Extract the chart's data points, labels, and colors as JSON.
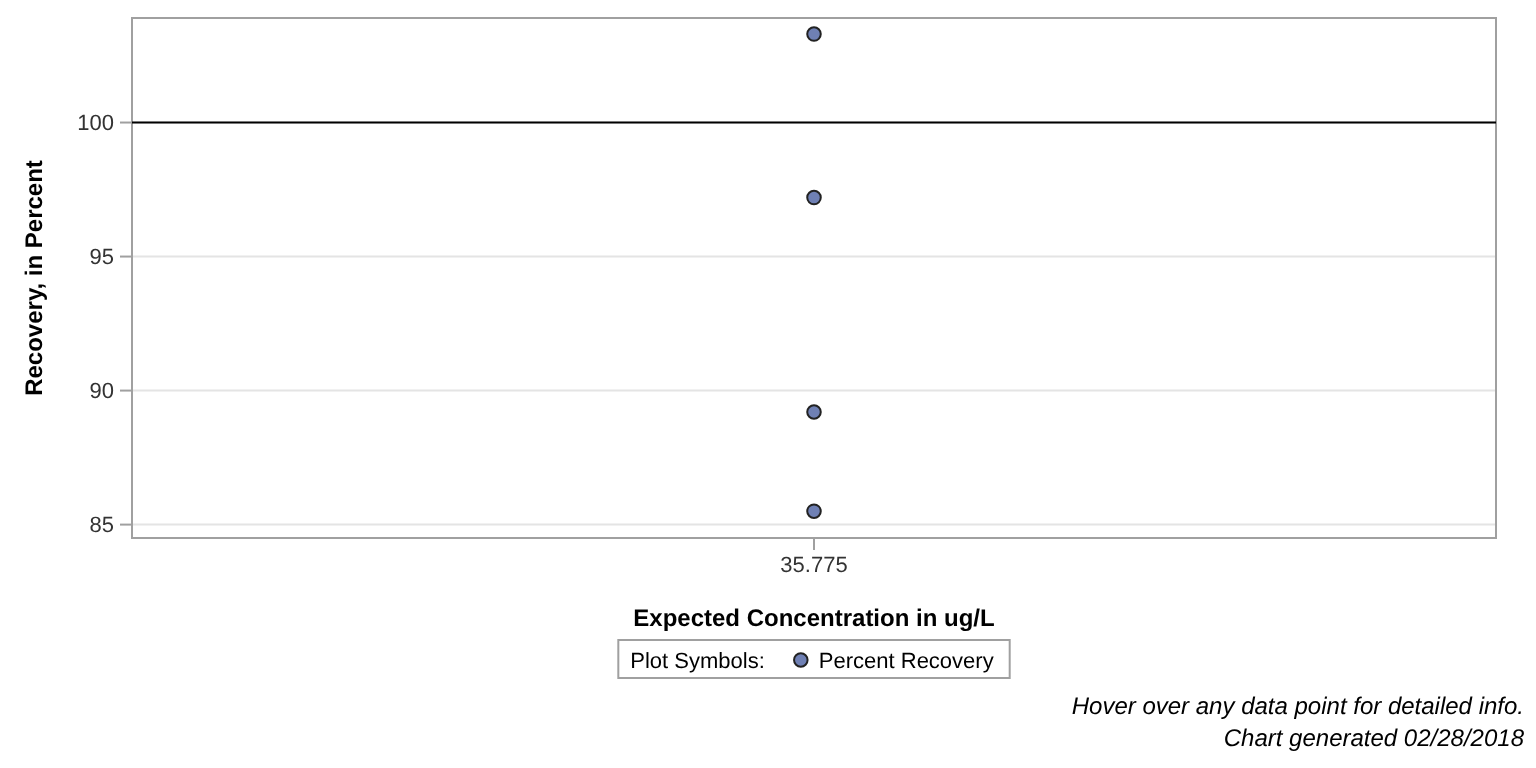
{
  "chart_data": {
    "type": "scatter",
    "xlabel": "Expected Concentration in ug/L",
    "ylabel": "Recovery, in Percent",
    "legend_title": "Plot Symbols:",
    "categories": [
      "35.775"
    ],
    "series": [
      {
        "name": "Percent Recovery",
        "color": "#6f80b4",
        "values": [
          103.3
        ]
      },
      {
        "name": null,
        "color": "#6f80b4",
        "values": [
          97.2
        ]
      },
      {
        "name": null,
        "color": "#6f80b4",
        "values": [
          89.2
        ]
      },
      {
        "name": null,
        "color": "#6f80b4",
        "values": [
          85.5
        ]
      }
    ],
    "ylim": [
      84.5,
      103.9
    ],
    "yticks": [
      85,
      90,
      95,
      100
    ],
    "grid": "y",
    "legend": "bottom",
    "marker": "circle",
    "ref_lines": [
      {
        "axis": "y",
        "value": 100,
        "color": "#000000"
      }
    ],
    "annotations": [
      "Hover over any data point for detailed info.",
      "Chart generated 02/28/2018"
    ]
  }
}
